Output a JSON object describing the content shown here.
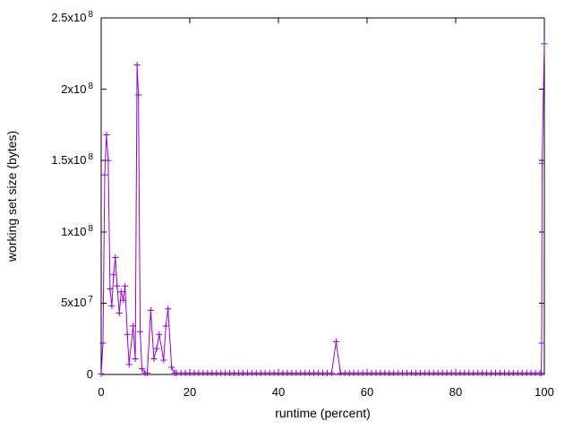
{
  "window": {
    "background": "#ffffff"
  },
  "chart_data": {
    "type": "line",
    "title": "",
    "xlabel": "runtime (percent)",
    "ylabel": "working set size (bytes)",
    "xlim": [
      0,
      100
    ],
    "ylim": [
      0,
      250000000
    ],
    "grid": false,
    "legend": "none",
    "marker": "plus",
    "line_color": "#9400d3",
    "axis_color": "#000000",
    "background_color": "#ffffff",
    "x_ticks": [
      {
        "value": 0,
        "label": "0"
      },
      {
        "value": 20,
        "label": "20"
      },
      {
        "value": 40,
        "label": "40"
      },
      {
        "value": 60,
        "label": "60"
      },
      {
        "value": 80,
        "label": "80"
      },
      {
        "value": 100,
        "label": "100"
      }
    ],
    "y_ticks": [
      {
        "value": 0,
        "label": "0"
      },
      {
        "value": 50000000,
        "label": "5x10^7"
      },
      {
        "value": 100000000,
        "label": "1x10^8"
      },
      {
        "value": 150000000,
        "label": "1.5x10^8"
      },
      {
        "value": 200000000,
        "label": "2x10^8"
      },
      {
        "value": 250000000,
        "label": "2.5x10^8"
      }
    ],
    "y_unit": 1000000,
    "points": [
      [
        0,
        0.5
      ],
      [
        0.4,
        22
      ],
      [
        0.8,
        140
      ],
      [
        1.2,
        168
      ],
      [
        1.6,
        150
      ],
      [
        2,
        60
      ],
      [
        2.4,
        48
      ],
      [
        2.8,
        70
      ],
      [
        3.2,
        82
      ],
      [
        3.6,
        62
      ],
      [
        4.1,
        43
      ],
      [
        4.5,
        58
      ],
      [
        5,
        52
      ],
      [
        5.4,
        62
      ],
      [
        5.9,
        28
      ],
      [
        6.3,
        7
      ],
      [
        7.2,
        34
      ],
      [
        7.7,
        11
      ],
      [
        8.1,
        217
      ],
      [
        8.4,
        196
      ],
      [
        8.8,
        30
      ],
      [
        9.2,
        4
      ],
      [
        9.9,
        1
      ],
      [
        10.4,
        1
      ],
      [
        11.2,
        45
      ],
      [
        11.9,
        11
      ],
      [
        12.5,
        18
      ],
      [
        13.1,
        28
      ],
      [
        14.1,
        10
      ],
      [
        14.6,
        34
      ],
      [
        15.1,
        46
      ],
      [
        15.9,
        5
      ],
      [
        16.6,
        1
      ],
      [
        17,
        1
      ],
      [
        18,
        1
      ],
      [
        19,
        1
      ],
      [
        20,
        1
      ],
      [
        21,
        1
      ],
      [
        22,
        1
      ],
      [
        23,
        1
      ],
      [
        24,
        1
      ],
      [
        25,
        1
      ],
      [
        26,
        1
      ],
      [
        27,
        1
      ],
      [
        28,
        1
      ],
      [
        29,
        1
      ],
      [
        30,
        1
      ],
      [
        31,
        1
      ],
      [
        32,
        1
      ],
      [
        33,
        1
      ],
      [
        34,
        1
      ],
      [
        35,
        1
      ],
      [
        36,
        1
      ],
      [
        37,
        1
      ],
      [
        38,
        1
      ],
      [
        39,
        1
      ],
      [
        40,
        1
      ],
      [
        41,
        1
      ],
      [
        42,
        1
      ],
      [
        43,
        1
      ],
      [
        44,
        1
      ],
      [
        45,
        1
      ],
      [
        46,
        1
      ],
      [
        47,
        1
      ],
      [
        48,
        1
      ],
      [
        49,
        1
      ],
      [
        50,
        1
      ],
      [
        51,
        1
      ],
      [
        52,
        1
      ],
      [
        53,
        23
      ],
      [
        54,
        1
      ],
      [
        55,
        1
      ],
      [
        56,
        1
      ],
      [
        57,
        1
      ],
      [
        58,
        1
      ],
      [
        59,
        1
      ],
      [
        60,
        1
      ],
      [
        61,
        1
      ],
      [
        62,
        1
      ],
      [
        63,
        1
      ],
      [
        64,
        1
      ],
      [
        65,
        1
      ],
      [
        66,
        1
      ],
      [
        67,
        1
      ],
      [
        68,
        1
      ],
      [
        69,
        1
      ],
      [
        70,
        1
      ],
      [
        71,
        1
      ],
      [
        72,
        1
      ],
      [
        73,
        1
      ],
      [
        74,
        1
      ],
      [
        75,
        1
      ],
      [
        76,
        1
      ],
      [
        77,
        1
      ],
      [
        78,
        1
      ],
      [
        79,
        1
      ],
      [
        80,
        1
      ],
      [
        81,
        1
      ],
      [
        82,
        1
      ],
      [
        83,
        1
      ],
      [
        84,
        1
      ],
      [
        85,
        1
      ],
      [
        86,
        1
      ],
      [
        87,
        1
      ],
      [
        88,
        1
      ],
      [
        89,
        1
      ],
      [
        90,
        1
      ],
      [
        91,
        1
      ],
      [
        92,
        1
      ],
      [
        93,
        1
      ],
      [
        94,
        1
      ],
      [
        95,
        1
      ],
      [
        96,
        1
      ],
      [
        97,
        1
      ],
      [
        98,
        1
      ],
      [
        99,
        1
      ],
      [
        99.3,
        1
      ],
      [
        99.4,
        22
      ],
      [
        99.5,
        148
      ],
      [
        100,
        232
      ]
    ]
  }
}
